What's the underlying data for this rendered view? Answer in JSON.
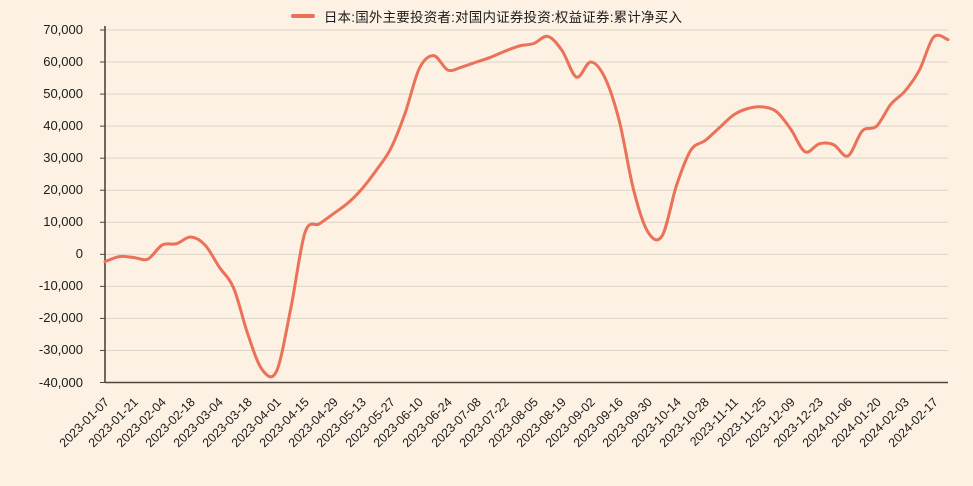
{
  "legend": {
    "label": "日本:国外主要投资者:对国内证券投资:权益证券:累计净买入"
  },
  "colors": {
    "background": "#FCF1E3",
    "line": "#EB7158",
    "grid": "#DCD4C7",
    "axis": "#4C453E",
    "text": "#1C1C1C"
  },
  "chart_data": {
    "type": "line",
    "title": "日本:国外主要投资者:对国内证券投资:权益证券:累计净买入",
    "legend_position": "top-center",
    "grid": "horizontal",
    "line_color": "#EB7158",
    "ylim": [
      -40000,
      70000
    ],
    "y_ticks": [
      70000,
      60000,
      50000,
      40000,
      30000,
      20000,
      10000,
      0,
      -10000,
      -20000,
      -30000,
      -40000
    ],
    "x_tick_labels": [
      "2023-01-07",
      "2023-01-21",
      "2023-02-04",
      "2023-02-18",
      "2023-03-04",
      "2023-03-18",
      "2023-04-01",
      "2023-04-15",
      "2023-04-29",
      "2023-05-13",
      "2023-05-27",
      "2023-06-10",
      "2023-06-24",
      "2023-07-08",
      "2023-07-22",
      "2023-08-05",
      "2023-08-19",
      "2023-09-02",
      "2023-09-16",
      "2023-09-30",
      "2023-10-14",
      "2023-10-28",
      "2023-11-11",
      "2023-11-25",
      "2023-12-09",
      "2023-12-23",
      "2024-01-06",
      "2024-01-20",
      "2024-02-03",
      "2024-02-17"
    ],
    "x": [
      "2023-01-07",
      "2023-01-14",
      "2023-01-21",
      "2023-01-28",
      "2023-02-04",
      "2023-02-11",
      "2023-02-18",
      "2023-02-25",
      "2023-03-04",
      "2023-03-11",
      "2023-03-18",
      "2023-03-25",
      "2023-04-01",
      "2023-04-08",
      "2023-04-15",
      "2023-04-22",
      "2023-04-29",
      "2023-05-06",
      "2023-05-13",
      "2023-05-20",
      "2023-05-27",
      "2023-06-03",
      "2023-06-10",
      "2023-06-17",
      "2023-06-24",
      "2023-07-01",
      "2023-07-08",
      "2023-07-15",
      "2023-07-22",
      "2023-07-29",
      "2023-08-05",
      "2023-08-12",
      "2023-08-19",
      "2023-08-26",
      "2023-09-02",
      "2023-09-09",
      "2023-09-16",
      "2023-09-23",
      "2023-09-30",
      "2023-10-07",
      "2023-10-14",
      "2023-10-21",
      "2023-10-28",
      "2023-11-04",
      "2023-11-11",
      "2023-11-18",
      "2023-11-25",
      "2023-12-02",
      "2023-12-09",
      "2023-12-16",
      "2023-12-23",
      "2023-12-30",
      "2024-01-06",
      "2024-01-13",
      "2024-01-20",
      "2024-01-27",
      "2024-02-03",
      "2024-02-10",
      "2024-02-17",
      "2024-02-24"
    ],
    "values": [
      -2300,
      -700,
      -1000,
      -1500,
      2900,
      3300,
      5400,
      2900,
      -4000,
      -10500,
      -25000,
      -36000,
      -36500,
      -17000,
      6800,
      9500,
      12700,
      16000,
      20500,
      26300,
      33000,
      44000,
      58000,
      62000,
      57500,
      58500,
      60000,
      61500,
      63400,
      65000,
      65800,
      68000,
      63500,
      55300,
      60000,
      55000,
      41500,
      20000,
      7000,
      5800,
      21500,
      32500,
      35500,
      39500,
      43500,
      45500,
      46000,
      44500,
      39000,
      32000,
      34500,
      34200,
      30700,
      38500,
      40000,
      46800,
      51000,
      57500,
      67800,
      67000
    ]
  }
}
